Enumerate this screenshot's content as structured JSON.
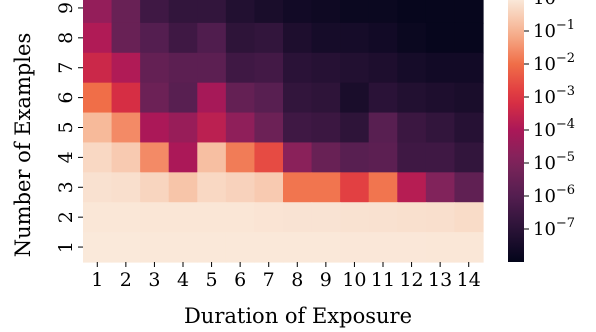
{
  "chart_data": {
    "type": "heatmap",
    "title": "",
    "xlabel": "Duration of Exposure",
    "ylabel": "Number of Examples",
    "x": [
      1,
      2,
      3,
      4,
      5,
      6,
      7,
      8,
      9,
      10,
      11,
      12,
      13,
      14
    ],
    "y": [
      9,
      8,
      7,
      6,
      5,
      4,
      3,
      2,
      1
    ],
    "color_scale": "log",
    "color_map": "rocket",
    "color_range": [
      1e-08,
      1
    ],
    "colorbar_ticks": [
      {
        "value": 1,
        "base": "10",
        "exp": "0"
      },
      {
        "value": 0.1,
        "base": "10",
        "exp": "−1"
      },
      {
        "value": 0.01,
        "base": "10",
        "exp": "−2"
      },
      {
        "value": 0.001,
        "base": "10",
        "exp": "−3"
      },
      {
        "value": 0.0001,
        "base": "10",
        "exp": "−4"
      },
      {
        "value": 1e-05,
        "base": "10",
        "exp": "−5"
      },
      {
        "value": 1e-06,
        "base": "10",
        "exp": "−6"
      },
      {
        "value": 1e-07,
        "base": "10",
        "exp": "−7"
      }
    ],
    "log10_values": [
      [
        -4.5,
        -5.5,
        -6.5,
        -6.8,
        -6.8,
        -7.2,
        -7.4,
        -7.6,
        -7.7,
        -7.8,
        -7.8,
        -7.9,
        -7.9,
        -7.9
      ],
      [
        -3.9,
        -5.5,
        -6.0,
        -6.5,
        -6.1,
        -6.9,
        -6.8,
        -7.3,
        -7.5,
        -7.5,
        -7.6,
        -7.8,
        -7.9,
        -7.9
      ],
      [
        -3.4,
        -3.9,
        -5.6,
        -5.8,
        -5.8,
        -6.5,
        -6.4,
        -7.0,
        -7.1,
        -7.2,
        -7.3,
        -7.5,
        -7.6,
        -7.6
      ],
      [
        -2.0,
        -3.2,
        -5.4,
        -5.9,
        -4.1,
        -5.6,
        -5.9,
        -6.8,
        -6.9,
        -7.4,
        -7.0,
        -7.2,
        -7.3,
        -7.4
      ],
      [
        -0.9,
        -1.6,
        -4.0,
        -4.4,
        -3.7,
        -4.6,
        -5.4,
        -6.5,
        -6.6,
        -6.9,
        -5.9,
        -6.6,
        -6.8,
        -7.1
      ],
      [
        -0.35,
        -0.6,
        -1.6,
        -4.0,
        -0.8,
        -1.8,
        -2.6,
        -4.7,
        -5.5,
        -5.9,
        -5.8,
        -6.5,
        -6.5,
        -6.8
      ],
      [
        -0.18,
        -0.22,
        -0.4,
        -0.7,
        -0.35,
        -0.45,
        -0.6,
        -1.9,
        -1.9,
        -2.8,
        -1.9,
        -3.8,
        -4.9,
        -5.7
      ],
      [
        -0.08,
        -0.08,
        -0.1,
        -0.1,
        -0.1,
        -0.1,
        -0.12,
        -0.14,
        -0.14,
        -0.16,
        -0.18,
        -0.2,
        -0.22,
        -0.28
      ],
      [
        -0.04,
        -0.04,
        -0.05,
        -0.06,
        -0.05,
        -0.06,
        -0.06,
        -0.06,
        -0.06,
        -0.07,
        -0.07,
        -0.07,
        -0.08,
        -0.08
      ]
    ]
  }
}
